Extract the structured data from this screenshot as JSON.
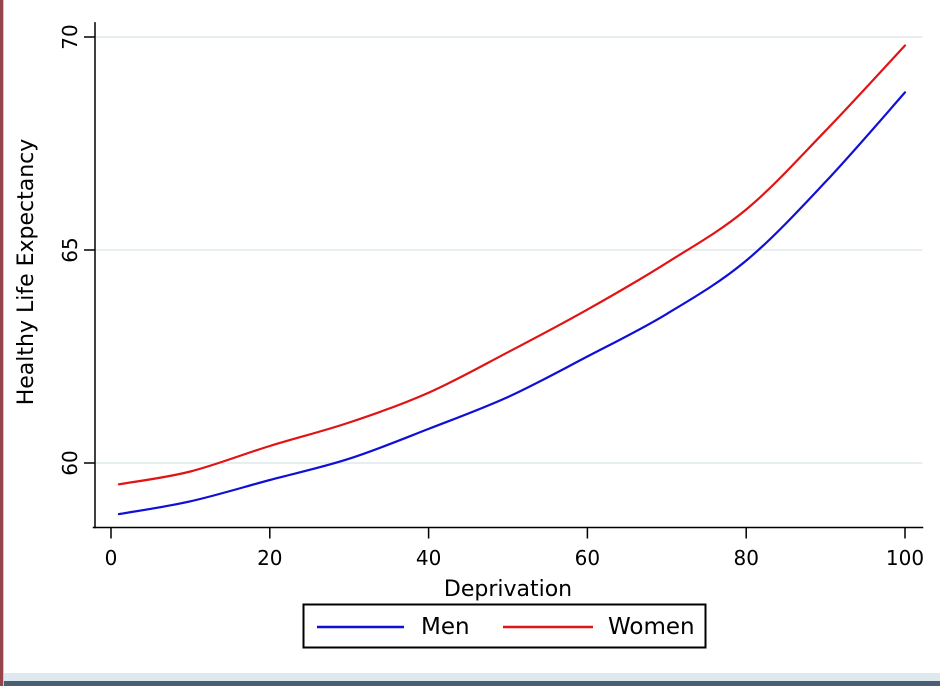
{
  "window": {
    "left_border_color": "#94444a",
    "bottom_bar_color": "#dde8ef",
    "bottom_edge_color": "#4a5f73"
  },
  "chart_data": {
    "type": "line",
    "title": "",
    "xlabel": "Deprivation",
    "ylabel": "Healthy Life Expectancy",
    "x_ticks": [
      0,
      20,
      40,
      60,
      80,
      100
    ],
    "y_ticks": [
      60,
      65,
      70
    ],
    "xlim": [
      -2.3,
      102.3
    ],
    "ylim": [
      58.45,
      70.35
    ],
    "grid": true,
    "grid_color": "#e6eef0",
    "axis_color": "#000000",
    "legend_position": "bottom-center",
    "series": [
      {
        "name": "Men",
        "color": "#0f0fd6",
        "x": [
          1,
          10,
          20,
          30,
          40,
          50,
          60,
          70,
          80,
          90,
          100
        ],
        "y": [
          58.8,
          59.1,
          59.6,
          60.1,
          60.8,
          61.55,
          62.5,
          63.5,
          64.75,
          66.6,
          68.7
        ]
      },
      {
        "name": "Women",
        "color": "#e01414",
        "x": [
          1,
          10,
          20,
          30,
          40,
          50,
          60,
          70,
          80,
          90,
          100
        ],
        "y": [
          59.5,
          59.8,
          60.4,
          60.95,
          61.65,
          62.6,
          63.6,
          64.7,
          65.95,
          67.8,
          69.8
        ]
      }
    ]
  }
}
